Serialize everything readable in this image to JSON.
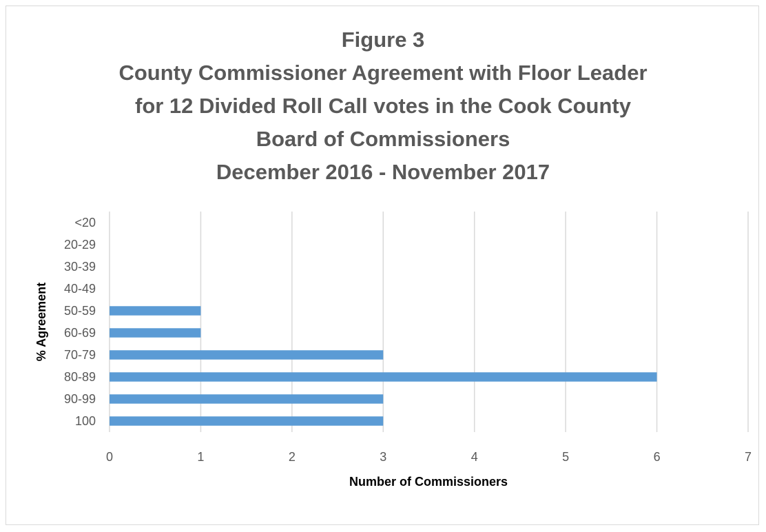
{
  "chart_data": {
    "type": "bar",
    "orientation": "horizontal",
    "title_lines": [
      "Figure 3",
      "County Commissioner Agreement with Floor Leader",
      "for 12 Divided Roll Call votes in the Cook County",
      "Board of Commissioners",
      "December 2016 - November 2017"
    ],
    "categories": [
      "<20",
      "20-29",
      "30-39",
      "40-49",
      "50-59",
      "60-69",
      "70-79",
      "80-89",
      "90-99",
      "100"
    ],
    "values": [
      0,
      0,
      0,
      0,
      1,
      1,
      3,
      6,
      3,
      3
    ],
    "xlabel": "Number of Commissioners",
    "ylabel": "% Agreement",
    "xlim": [
      0,
      7
    ],
    "xticks": [
      "0",
      "1",
      "2",
      "3",
      "4",
      "5",
      "6",
      "7"
    ],
    "grid": "vertical",
    "legend": "none",
    "colors": {
      "bar": "#5b9bd5",
      "grid": "#d9d9d9",
      "text": "#595959"
    }
  }
}
